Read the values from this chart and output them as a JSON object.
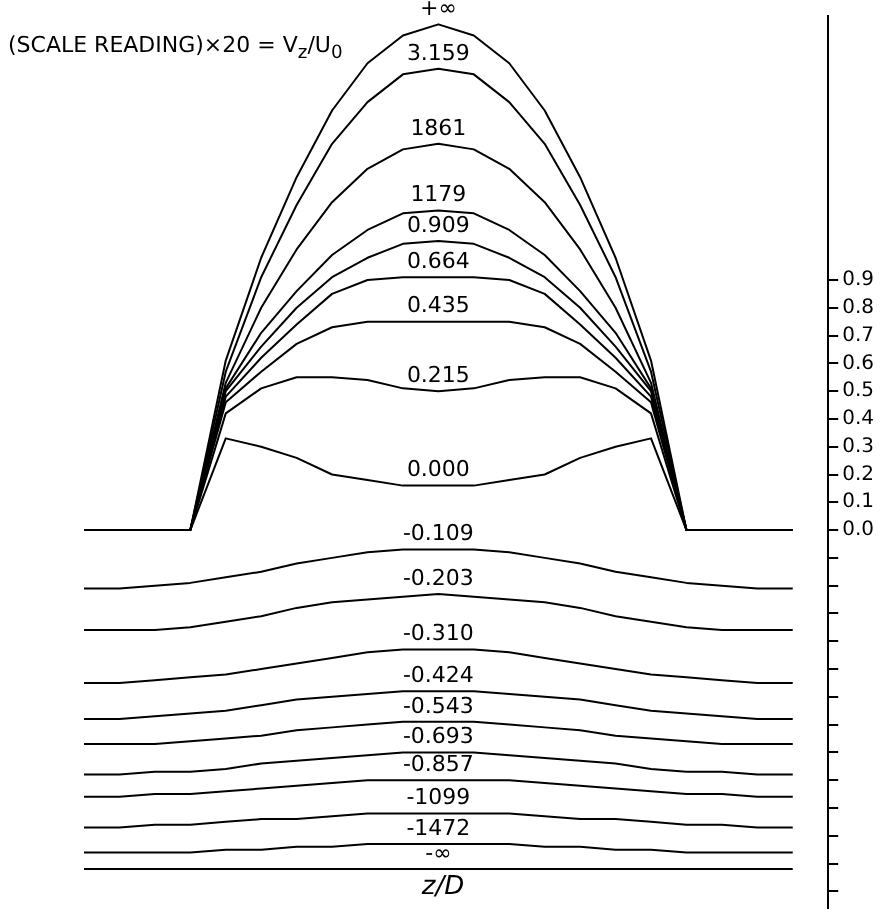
{
  "chart_data": {
    "type": "line",
    "ylabel": "(SCALE READING)×20 = V$_{z}$/U$_{0}$",
    "xlabel": "z/D",
    "categories": [
      null,
      null,
      null,
      null,
      null,
      null,
      null,
      null,
      null,
      null,
      null,
      null,
      null,
      null,
      null,
      null,
      null,
      null,
      null,
      null,
      null
    ],
    "ylim": [
      -1.36,
      1.85
    ],
    "yticks": [
      {
        "value": 0.9,
        "label": "0.9"
      },
      {
        "value": 0.8,
        "label": "0.8"
      },
      {
        "value": 0.7,
        "label": "0.7"
      },
      {
        "value": 0.6,
        "label": "0.6"
      },
      {
        "value": 0.5,
        "label": "0.5"
      },
      {
        "value": 0.4,
        "label": "0.4"
      },
      {
        "value": 0.3,
        "label": "0.3"
      },
      {
        "value": 0.2,
        "label": "0.2"
      },
      {
        "value": 0.1,
        "label": "0.1"
      },
      {
        "value": 0,
        "label": "0.0"
      },
      {
        "value": -0.1,
        "label": null
      },
      {
        "value": -0.2,
        "label": null
      },
      {
        "value": -0.3,
        "label": null
      },
      {
        "value": -0.4,
        "label": null
      },
      {
        "value": -0.5,
        "label": null
      },
      {
        "value": -0.6,
        "label": null
      },
      {
        "value": -0.7,
        "label": null
      },
      {
        "value": -0.8,
        "label": null
      },
      {
        "value": -0.9,
        "label": null
      },
      {
        "value": -1.0,
        "label": null
      },
      {
        "value": -1.1,
        "label": null
      },
      {
        "value": -1.2,
        "label": null
      },
      {
        "value": -1.3,
        "label": null
      }
    ],
    "tick_labels": "y",
    "grid": false,
    "legend": false,
    "marker": "none",
    "line_style": "solid",
    "series": [
      {
        "name": "+∞",
        "color": "#000000",
        "values": [
          0,
          0,
          0,
          0,
          0.61,
          0.98,
          1.27,
          1.51,
          1.68,
          1.78,
          1.82,
          1.78,
          1.68,
          1.51,
          1.27,
          0.98,
          0.61,
          0,
          0,
          0,
          0
        ]
      },
      {
        "name": "3.159",
        "color": "#000000",
        "values": [
          0,
          0,
          0,
          0,
          0.57,
          0.91,
          1.17,
          1.39,
          1.54,
          1.64,
          1.66,
          1.64,
          1.54,
          1.39,
          1.17,
          0.91,
          0.57,
          0,
          0,
          0,
          0
        ]
      },
      {
        "name": "1861",
        "color": "#000000",
        "values": [
          0,
          0,
          0,
          0,
          0.53,
          0.8,
          1.01,
          1.18,
          1.3,
          1.37,
          1.39,
          1.37,
          1.3,
          1.18,
          1.01,
          0.8,
          0.53,
          0,
          0,
          0,
          0
        ]
      },
      {
        "name": "1179",
        "color": "#000000",
        "values": [
          0,
          0,
          0,
          0,
          0.51,
          0.71,
          0.86,
          0.99,
          1.08,
          1.14,
          1.15,
          1.14,
          1.08,
          0.99,
          0.86,
          0.71,
          0.51,
          0,
          0,
          0,
          0
        ]
      },
      {
        "name": "0.909",
        "color": "#000000",
        "values": [
          0,
          0,
          0,
          0,
          0.5,
          0.66,
          0.8,
          0.91,
          0.98,
          1.03,
          1.04,
          1.03,
          0.98,
          0.91,
          0.8,
          0.66,
          0.5,
          0,
          0,
          0,
          0
        ]
      },
      {
        "name": "0.664",
        "color": "#000000",
        "values": [
          0,
          0,
          0,
          0,
          0.48,
          0.62,
          0.74,
          0.85,
          0.9,
          0.91,
          0.91,
          0.91,
          0.9,
          0.85,
          0.74,
          0.62,
          0.48,
          0,
          0,
          0,
          0
        ]
      },
      {
        "name": "0.435",
        "color": "#000000",
        "values": [
          0,
          0,
          0,
          0,
          0.46,
          0.57,
          0.67,
          0.73,
          0.75,
          0.75,
          0.75,
          0.75,
          0.75,
          0.73,
          0.67,
          0.57,
          0.46,
          0,
          0,
          0,
          0
        ]
      },
      {
        "name": "0.215",
        "color": "#000000",
        "values": [
          0,
          0,
          0,
          0,
          0.42,
          0.51,
          0.55,
          0.55,
          0.54,
          0.51,
          0.5,
          0.51,
          0.54,
          0.55,
          0.55,
          0.51,
          0.42,
          0,
          0,
          0,
          0
        ]
      },
      {
        "name": "0.000",
        "color": "#000000",
        "values": [
          0,
          0,
          0,
          0,
          0.33,
          0.3,
          0.26,
          0.2,
          0.18,
          0.16,
          0.16,
          0.16,
          0.18,
          0.2,
          0.26,
          0.3,
          0.33,
          0,
          0,
          0,
          0
        ]
      },
      {
        "name": "-0.109",
        "color": "#000000",
        "values": [
          -0.21,
          -0.21,
          -0.2,
          -0.19,
          -0.17,
          -0.15,
          -0.12,
          -0.1,
          -0.08,
          -0.07,
          -0.07,
          -0.07,
          -0.08,
          -0.1,
          -0.12,
          -0.15,
          -0.17,
          -0.19,
          -0.2,
          -0.21,
          -0.21
        ]
      },
      {
        "name": "-0.203",
        "color": "#000000",
        "values": [
          -0.36,
          -0.36,
          -0.36,
          -0.35,
          -0.33,
          -0.31,
          -0.28,
          -0.26,
          -0.25,
          -0.24,
          -0.23,
          -0.24,
          -0.25,
          -0.26,
          -0.28,
          -0.31,
          -0.33,
          -0.35,
          -0.36,
          -0.36,
          -0.36
        ]
      },
      {
        "name": "-0.310",
        "color": "#000000",
        "values": [
          -0.55,
          -0.55,
          -0.54,
          -0.53,
          -0.52,
          -0.5,
          -0.48,
          -0.46,
          -0.44,
          -0.43,
          -0.43,
          -0.43,
          -0.44,
          -0.46,
          -0.48,
          -0.5,
          -0.52,
          -0.53,
          -0.54,
          -0.55,
          -0.55
        ]
      },
      {
        "name": "-0.424",
        "color": "#000000",
        "values": [
          -0.68,
          -0.68,
          -0.67,
          -0.66,
          -0.65,
          -0.63,
          -0.61,
          -0.6,
          -0.59,
          -0.58,
          -0.58,
          -0.58,
          -0.59,
          -0.6,
          -0.61,
          -0.63,
          -0.65,
          -0.66,
          -0.67,
          -0.68,
          -0.68
        ]
      },
      {
        "name": "-0.543",
        "color": "#000000",
        "values": [
          -0.77,
          -0.77,
          -0.77,
          -0.76,
          -0.75,
          -0.74,
          -0.72,
          -0.71,
          -0.7,
          -0.69,
          -0.69,
          -0.69,
          -0.7,
          -0.71,
          -0.72,
          -0.74,
          -0.75,
          -0.76,
          -0.77,
          -0.77,
          -0.77
        ]
      },
      {
        "name": "-0.693",
        "color": "#000000",
        "values": [
          -0.88,
          -0.88,
          -0.87,
          -0.87,
          -0.86,
          -0.84,
          -0.83,
          -0.82,
          -0.81,
          -0.8,
          -0.8,
          -0.8,
          -0.81,
          -0.82,
          -0.83,
          -0.84,
          -0.86,
          -0.87,
          -0.87,
          -0.88,
          -0.88
        ]
      },
      {
        "name": "-0.857",
        "color": "#000000",
        "values": [
          -0.96,
          -0.96,
          -0.95,
          -0.95,
          -0.94,
          -0.93,
          -0.92,
          -0.91,
          -0.9,
          -0.9,
          -0.9,
          -0.9,
          -0.9,
          -0.91,
          -0.92,
          -0.93,
          -0.94,
          -0.95,
          -0.95,
          -0.96,
          -0.96
        ]
      },
      {
        "name": "-1099",
        "color": "#000000",
        "values": [
          -1.07,
          -1.07,
          -1.06,
          -1.06,
          -1.05,
          -1.04,
          -1.04,
          -1.03,
          -1.02,
          -1.02,
          -1.02,
          -1.02,
          -1.02,
          -1.03,
          -1.04,
          -1.04,
          -1.05,
          -1.06,
          -1.06,
          -1.07,
          -1.07
        ]
      },
      {
        "name": "-1472",
        "color": "#000000",
        "values": [
          -1.16,
          -1.16,
          -1.16,
          -1.16,
          -1.15,
          -1.15,
          -1.14,
          -1.14,
          -1.13,
          -1.13,
          -1.13,
          -1.13,
          -1.13,
          -1.14,
          -1.14,
          -1.15,
          -1.15,
          -1.16,
          -1.16,
          -1.16,
          -1.16
        ]
      },
      {
        "name": "-∞",
        "color": "#000000",
        "values": [
          -1.22,
          -1.22,
          -1.22,
          -1.22,
          -1.22,
          -1.22,
          -1.22,
          -1.22,
          -1.22,
          -1.22,
          -1.22,
          -1.22,
          -1.22,
          -1.22,
          -1.22,
          -1.22,
          -1.22,
          -1.22,
          -1.22,
          -1.22,
          -1.22
        ]
      }
    ]
  }
}
